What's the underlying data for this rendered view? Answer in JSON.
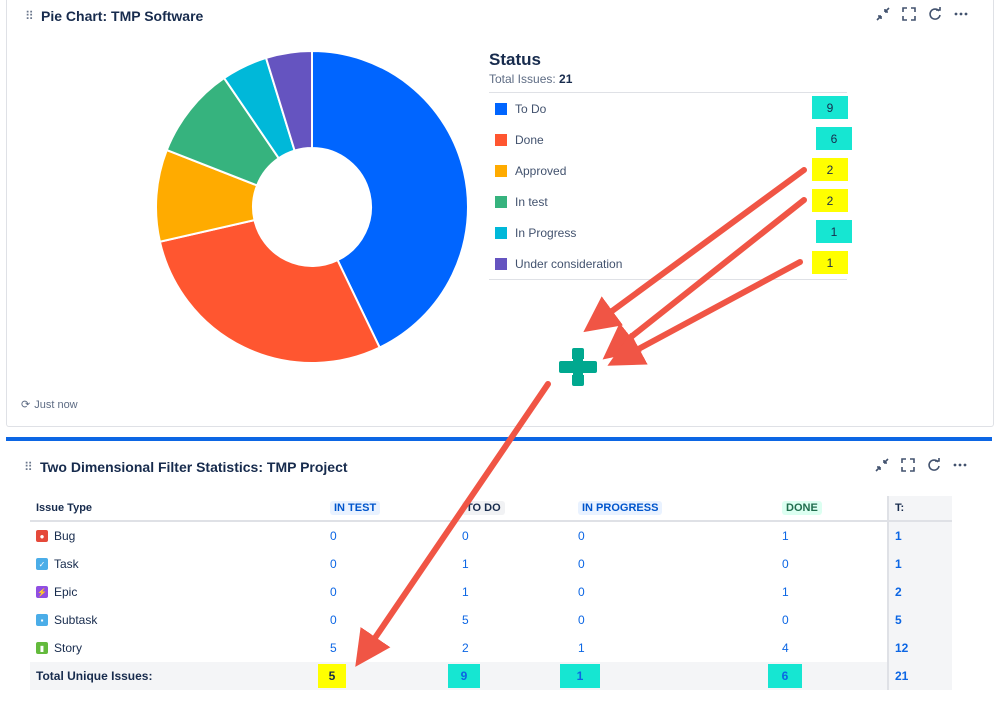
{
  "pie_gadget": {
    "title": "Pie Chart: TMP Software",
    "refresh_note": "Just now",
    "legend": {
      "heading": "Status",
      "total_label": "Total Issues:",
      "total_value": "21",
      "items": [
        {
          "label": "To Do",
          "count": "9",
          "color": "#0065ff",
          "highlight": "#16e6d2"
        },
        {
          "label": "Done",
          "count": "6",
          "color": "#ff5630",
          "highlight": "#16e6d2"
        },
        {
          "label": "Approved",
          "count": "2",
          "color": "#ffab00",
          "highlight": "#ffff00"
        },
        {
          "label": "In test",
          "count": "2",
          "color": "#36b37e",
          "highlight": "#ffff00"
        },
        {
          "label": "In Progress",
          "count": "1",
          "color": "#00b8d9",
          "highlight": "#16e6d2"
        },
        {
          "label": "Under consideration",
          "count": "1",
          "color": "#6554c0",
          "highlight": "#ffff00"
        }
      ]
    }
  },
  "chart_data": {
    "type": "pie",
    "categories": [
      "To Do",
      "Done",
      "Approved",
      "In test",
      "In Progress",
      "Under consideration"
    ],
    "values": [
      9,
      6,
      2,
      2,
      1,
      1
    ],
    "colors": [
      "#0065ff",
      "#ff5630",
      "#ffab00",
      "#36b37e",
      "#00b8d9",
      "#6554c0"
    ],
    "donut": true
  },
  "stats_gadget": {
    "title": "Two Dimensional Filter Statistics: TMP Project",
    "headers": {
      "issue_type": "Issue Type",
      "in_test": "IN TEST",
      "to_do": "TO DO",
      "in_progress": "IN PROGRESS",
      "done": "DONE",
      "total": "T:"
    },
    "rows": [
      {
        "type": "Bug",
        "icon": "bug-icon",
        "icon_color": "#e5493a",
        "in_test": "0",
        "to_do": "0",
        "in_progress": "0",
        "done": "1",
        "total": "1"
      },
      {
        "type": "Task",
        "icon": "task-icon",
        "icon_color": "#4bade8",
        "in_test": "0",
        "to_do": "1",
        "in_progress": "0",
        "done": "0",
        "total": "1"
      },
      {
        "type": "Epic",
        "icon": "epic-icon",
        "icon_color": "#904ee2",
        "in_test": "0",
        "to_do": "1",
        "in_progress": "0",
        "done": "1",
        "total": "2"
      },
      {
        "type": "Subtask",
        "icon": "subtask-icon",
        "icon_color": "#4bade8",
        "in_test": "0",
        "to_do": "5",
        "in_progress": "0",
        "done": "0",
        "total": "5"
      },
      {
        "type": "Story",
        "icon": "story-icon",
        "icon_color": "#63ba3c",
        "in_test": "5",
        "to_do": "2",
        "in_progress": "1",
        "done": "4",
        "total": "12"
      }
    ],
    "totals": {
      "label": "Total Unique Issues:",
      "in_test": "5",
      "to_do": "9",
      "in_progress": "1",
      "done": "6",
      "total": "21"
    }
  },
  "annotation": {
    "arrow_color": "#f05545",
    "plus_color": "#00a88f"
  }
}
